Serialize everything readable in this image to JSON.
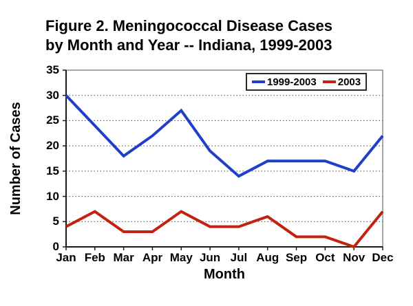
{
  "figure": {
    "title_line1": "Figure 2. Meningococcal Disease Cases",
    "title_line2": "by Month and Year -- Indiana, 1999-2003"
  },
  "chart_data": {
    "type": "line",
    "title": "Figure 2. Meningococcal Disease Cases by Month and Year -- Indiana, 1999-2003",
    "xlabel": "Month",
    "ylabel": "Number of Cases",
    "categories": [
      "Jan",
      "Feb",
      "Mar",
      "Apr",
      "May",
      "Jun",
      "Jul",
      "Aug",
      "Sep",
      "Oct",
      "Nov",
      "Dec"
    ],
    "series": [
      {
        "name": "1999-2003",
        "color": "#1F3FC8",
        "values": [
          30,
          24,
          18,
          22,
          27,
          19,
          14,
          17,
          17,
          17,
          15,
          22
        ]
      },
      {
        "name": "2003",
        "color": "#C22310",
        "values": [
          4,
          7,
          3,
          3,
          7,
          4,
          4,
          6,
          2,
          2,
          0,
          7
        ]
      }
    ],
    "ylim": [
      0,
      35
    ],
    "ytick_step": 5,
    "grid": "horizontal-dotted",
    "legend_position": "top-right",
    "frame_color": "#8C8C8C",
    "axis_color": "#1A1A1A",
    "grid_color": "#404040"
  }
}
